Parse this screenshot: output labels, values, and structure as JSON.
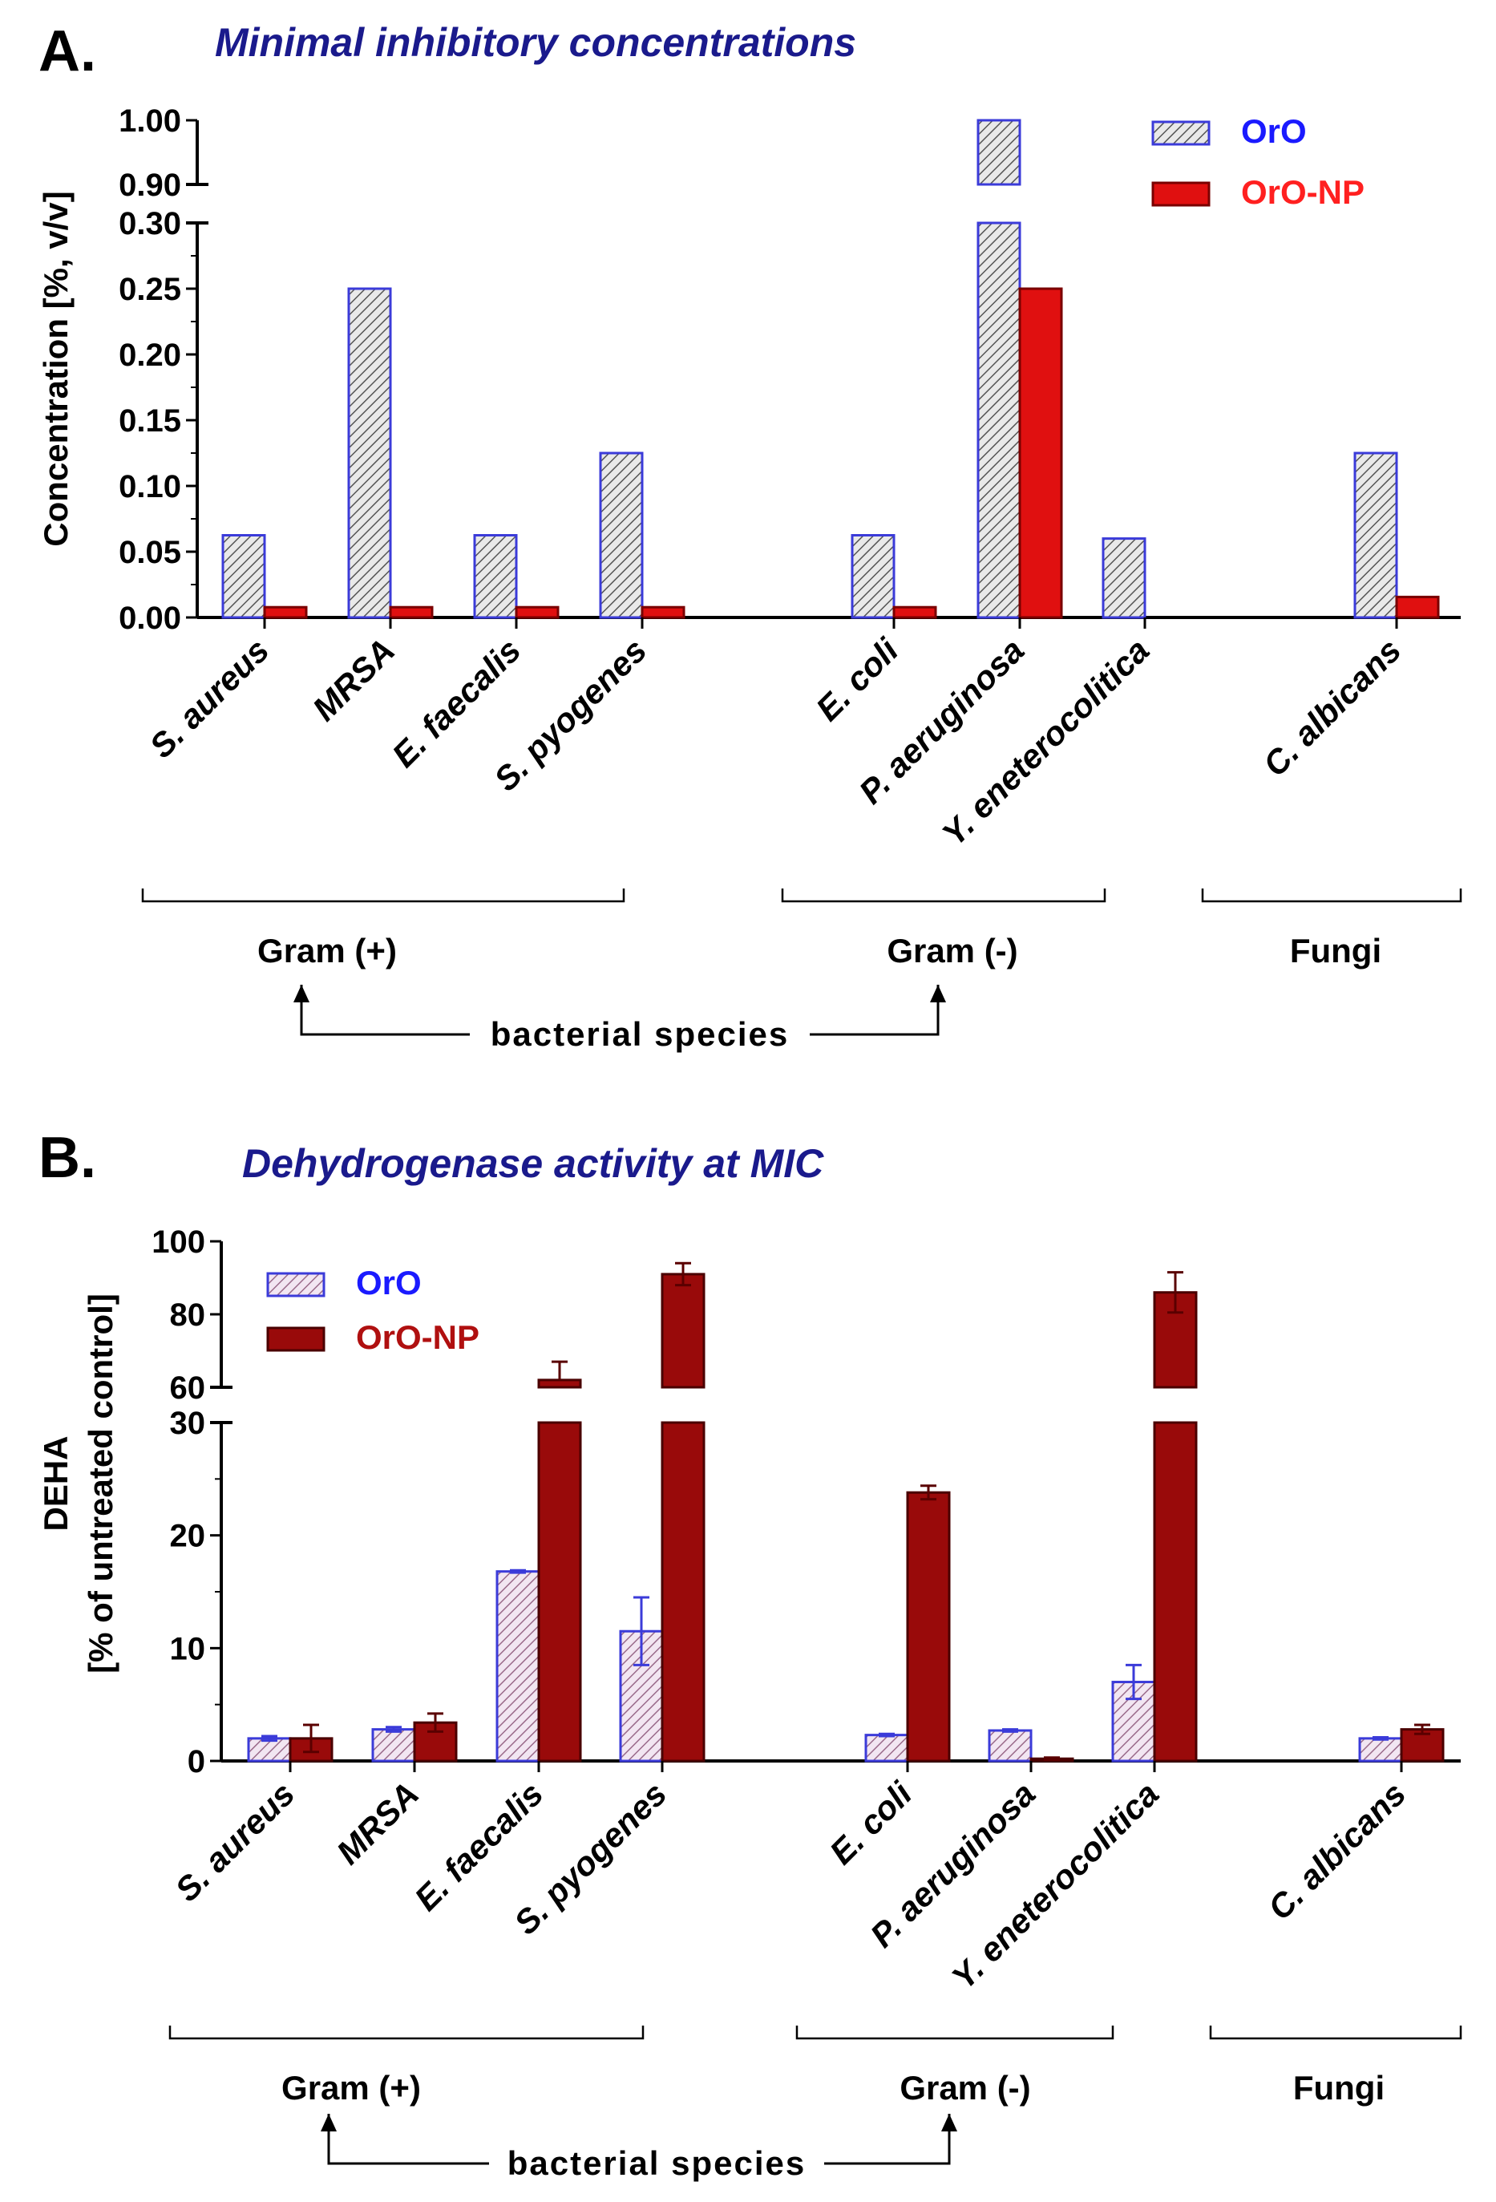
{
  "chart_data": [
    {
      "panel": "A.",
      "type": "bar",
      "title": "Minimal inhibitory concentrations",
      "ylabel": "Concentration [%, v/v]",
      "ylim_lower": [
        0,
        0.3
      ],
      "ylim_upper": [
        0.9,
        1.0
      ],
      "y_ticks": [
        "0.00",
        "0.05",
        "0.10",
        "0.15",
        "0.20",
        "0.25",
        "0.30",
        "0.90",
        "1.00"
      ],
      "categories": [
        "S. aureus",
        "MRSA",
        "E. faecalis",
        "S. pyogenes",
        "E. coli",
        "P. aeruginosa",
        "Y. eneterocolitica",
        "C. albicans"
      ],
      "series": [
        {
          "name": "OrO",
          "values": [
            0.0625,
            0.25,
            0.0625,
            0.125,
            0.0625,
            1.0,
            0.06,
            0.125
          ]
        },
        {
          "name": "OrO-NP",
          "values": [
            0.0078,
            0.0078,
            0.0078,
            0.0078,
            0.0078,
            0.25,
            0,
            0.0156
          ]
        }
      ],
      "groups": [
        {
          "label": "Gram (+)",
          "members": 4
        },
        {
          "label": "Gram (-)",
          "members": 3
        },
        {
          "label": "Fungi",
          "members": 1
        }
      ],
      "annotation": "bacterial species",
      "legend_placement": "top-right"
    },
    {
      "panel": "B.",
      "type": "bar",
      "title": "Dehydrogenase activity at MIC",
      "ylabel": [
        "DEHA",
        "[% of untreated control]"
      ],
      "ylim_lower": [
        0,
        30
      ],
      "ylim_upper": [
        60,
        100
      ],
      "y_ticks": [
        "0",
        "10",
        "20",
        "30",
        "60",
        "80",
        "100"
      ],
      "categories": [
        "S. aureus",
        "MRSA",
        "E. faecalis",
        "S. pyogenes",
        "E. coli",
        "P. aeruginosa",
        "Y. eneterocolitica",
        "C. albicans"
      ],
      "series": [
        {
          "name": "OrO",
          "values": [
            2.0,
            2.8,
            16.8,
            11.5,
            2.3,
            2.7,
            7.0,
            2.0
          ],
          "errors": [
            0.2,
            0.2,
            0.1,
            3.0,
            0.1,
            0.1,
            1.5,
            0.1
          ]
        },
        {
          "name": "OrO-NP",
          "values": [
            2.0,
            3.4,
            62,
            91,
            23.8,
            0.2,
            86,
            2.8
          ],
          "errors": [
            1.2,
            0.8,
            5,
            3,
            0.6,
            0.1,
            5.5,
            0.4
          ]
        }
      ],
      "groups": [
        {
          "label": "Gram (+)",
          "members": 4
        },
        {
          "label": "Gram (-)",
          "members": 3
        },
        {
          "label": "Fungi",
          "members": 1
        }
      ],
      "annotation": "bacterial species",
      "legend_placement": "top-left"
    }
  ],
  "colors": {
    "oro_stroke": "#3b3bd9",
    "oro_fill_a": "#e9e9e9",
    "oro_hatch_a": "#555555",
    "oro_fill_b": "#f2e6f2",
    "oro_hatch_b": "#9a6a8a",
    "oronp_a": "#e01010",
    "oronp_b": "#990a0a",
    "legend_oro_text": "#1a1aff",
    "legend_oronp_a_text": "#ff2020",
    "legend_oronp_b_text": "#b01010"
  }
}
